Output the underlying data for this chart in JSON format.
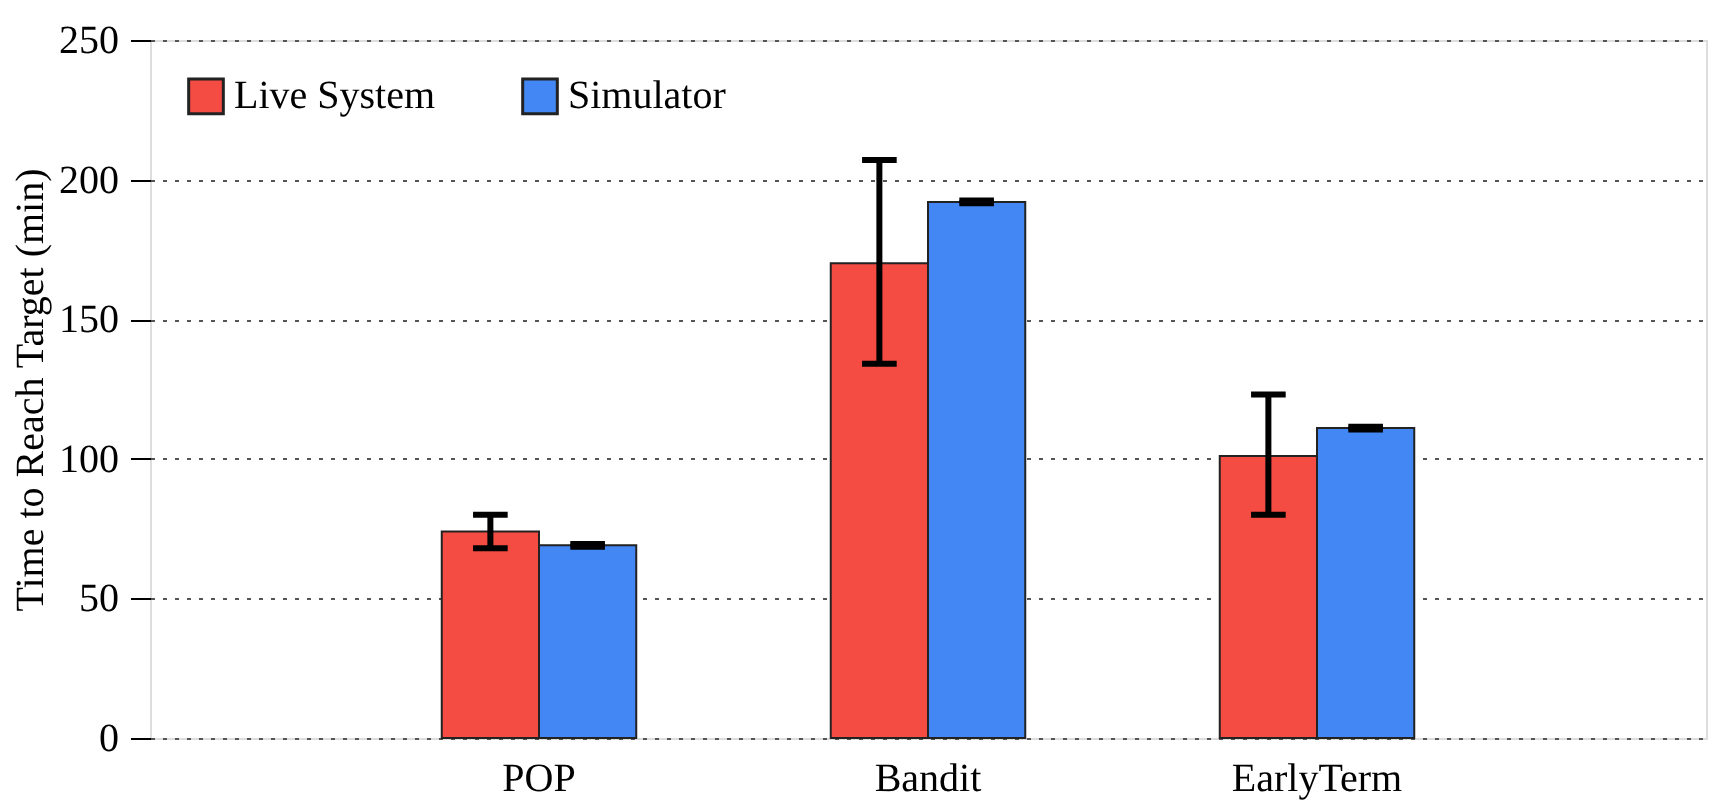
{
  "chart_data": {
    "type": "bar",
    "ylabel": "Time to Reach Target (min)",
    "categories": [
      "POP",
      "Bandit",
      "EarlyTerm"
    ],
    "series": [
      {
        "name": "Live System",
        "color": "#f44b42",
        "values": [
          74,
          170,
          101
        ],
        "errors": [
          [
            68,
            80
          ],
          [
            134,
            207
          ],
          [
            80,
            123
          ]
        ]
      },
      {
        "name": "Simulator",
        "color": "#4287f4",
        "values": [
          69,
          192,
          111
        ],
        "errors": [
          [
            68.5,
            69.5
          ],
          [
            191.5,
            192.5
          ],
          [
            110.5,
            111.5
          ]
        ]
      }
    ],
    "ylim": [
      0,
      250
    ],
    "yticks": [
      0,
      50,
      100,
      150,
      200,
      250
    ],
    "grid": "y",
    "legend": "top left"
  }
}
